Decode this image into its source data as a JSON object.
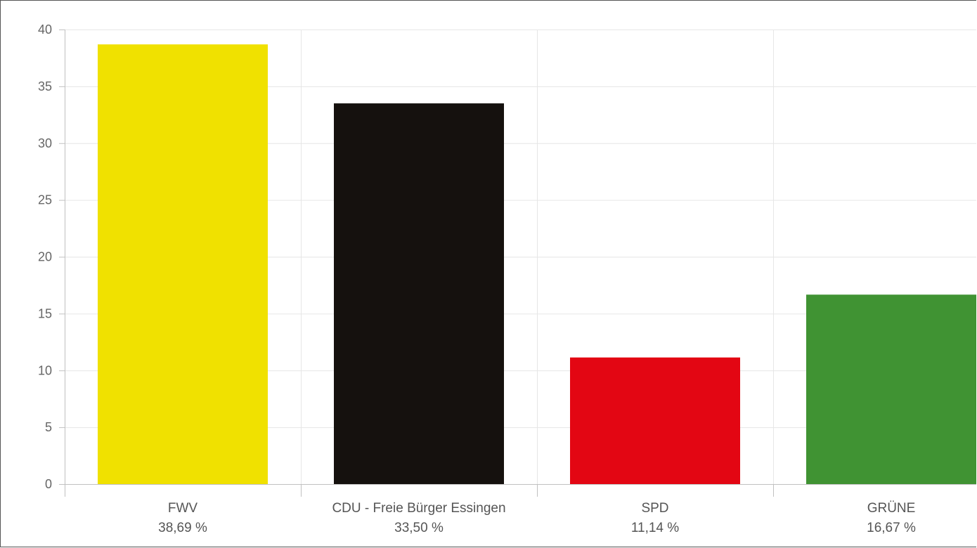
{
  "chart_data": {
    "type": "bar",
    "categories": [
      "FWV",
      "CDU - Freie Bürger Essingen",
      "SPD",
      "GRÜNE"
    ],
    "values": [
      38.69,
      33.5,
      11.14,
      16.67
    ],
    "value_labels": [
      "38,69 %",
      "33,50 %",
      "11,14 %",
      "16,67 %"
    ],
    "colors": [
      "#f0e100",
      "#15110e",
      "#e30613",
      "#409333"
    ],
    "title": "",
    "xlabel": "",
    "ylabel": "",
    "ylim": [
      0,
      40
    ],
    "yticks": [
      "0",
      "5",
      "10",
      "15",
      "20",
      "25",
      "30",
      "35",
      "40"
    ],
    "grid": true,
    "legend": "none"
  }
}
